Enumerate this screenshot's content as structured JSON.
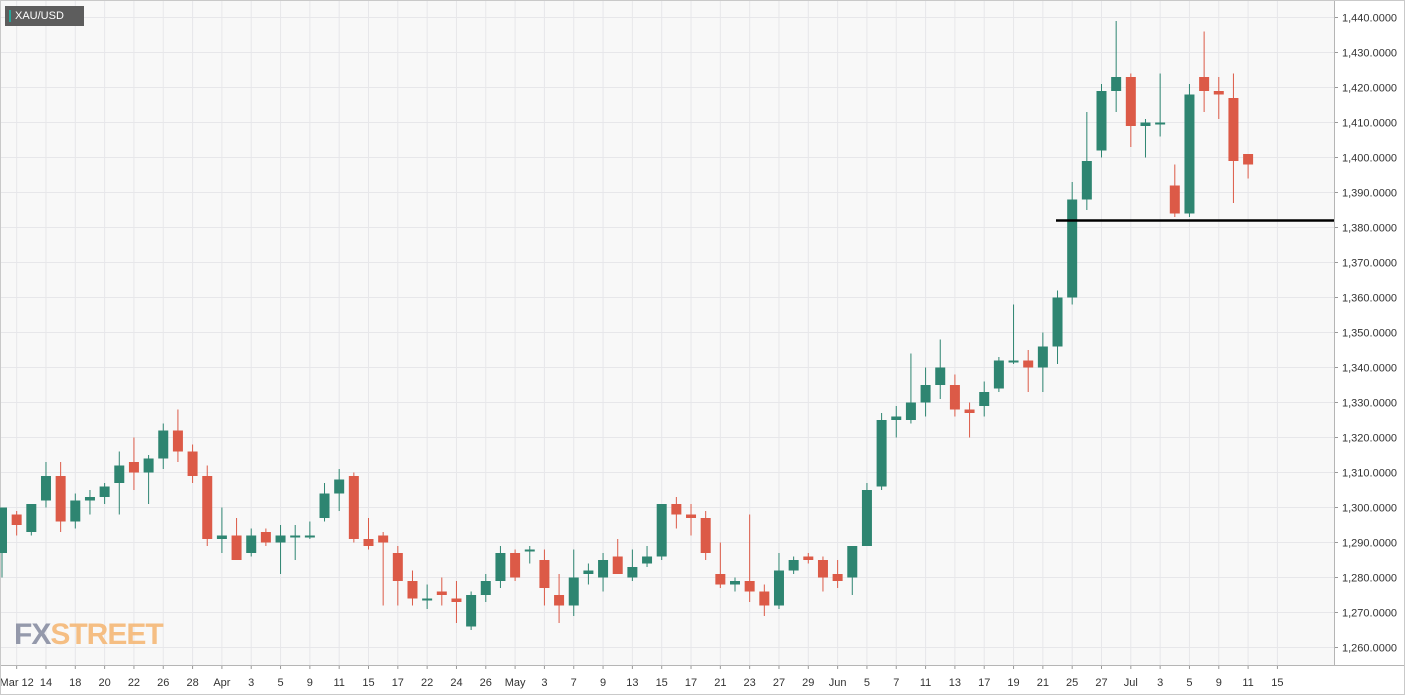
{
  "symbol": "XAU/USD",
  "logo": {
    "part1": "FX",
    "part2": "STREET"
  },
  "colors": {
    "up": "#2e8571",
    "down": "#dc5a47",
    "grid": "#e7e7ea",
    "support": "#000000",
    "plot_bg": "#f8f8f8"
  },
  "chart_data": {
    "type": "candlestick",
    "title": "",
    "xlabel": "",
    "ylabel": "",
    "ylim": [
      1255,
      1445
    ],
    "y_ticks": [
      1260,
      1270,
      1280,
      1290,
      1300,
      1310,
      1320,
      1330,
      1340,
      1350,
      1360,
      1370,
      1380,
      1390,
      1400,
      1410,
      1420,
      1430,
      1440
    ],
    "y_tick_labels": [
      "1,260.0000",
      "1,270.0000",
      "1,280.0000",
      "1,290.0000",
      "1,300.0000",
      "1,310.0000",
      "1,320.0000",
      "1,330.0000",
      "1,340.0000",
      "1,350.0000",
      "1,360.0000",
      "1,370.0000",
      "1,380.0000",
      "1,390.0000",
      "1,400.0000",
      "1,410.0000",
      "1,420.0000",
      "1,430.0000",
      "1,440.0000"
    ],
    "x_tick_labels": [
      "Mar 12",
      "14",
      "18",
      "20",
      "22",
      "26",
      "28",
      "Apr",
      "3",
      "5",
      "9",
      "11",
      "15",
      "17",
      "22",
      "24",
      "26",
      "May",
      "3",
      "7",
      "9",
      "13",
      "15",
      "17",
      "21",
      "23",
      "27",
      "29",
      "Jun",
      "5",
      "7",
      "11",
      "13",
      "17",
      "19",
      "21",
      "25",
      "27",
      "Jul",
      "3",
      "5",
      "9",
      "11",
      "15"
    ],
    "support_level": 1382,
    "candles": [
      {
        "o": 1287,
        "h": 1300,
        "l": 1280,
        "c": 1300
      },
      {
        "o": 1298,
        "h": 1299,
        "l": 1292,
        "c": 1295
      },
      {
        "o": 1293,
        "h": 1301,
        "l": 1292,
        "c": 1301
      },
      {
        "o": 1302,
        "h": 1313,
        "l": 1300,
        "c": 1309
      },
      {
        "o": 1309,
        "h": 1313,
        "l": 1293,
        "c": 1296
      },
      {
        "o": 1296,
        "h": 1304,
        "l": 1294,
        "c": 1302
      },
      {
        "o": 1302,
        "h": 1305,
        "l": 1298,
        "c": 1303
      },
      {
        "o": 1303,
        "h": 1307,
        "l": 1301,
        "c": 1306
      },
      {
        "o": 1307,
        "h": 1316,
        "l": 1298,
        "c": 1312
      },
      {
        "o": 1313,
        "h": 1320,
        "l": 1305,
        "c": 1310
      },
      {
        "o": 1310,
        "h": 1315,
        "l": 1301,
        "c": 1314
      },
      {
        "o": 1314,
        "h": 1324,
        "l": 1311,
        "c": 1322
      },
      {
        "o": 1322,
        "h": 1328,
        "l": 1313,
        "c": 1316
      },
      {
        "o": 1316,
        "h": 1318,
        "l": 1307,
        "c": 1309
      },
      {
        "o": 1309,
        "h": 1312,
        "l": 1289,
        "c": 1291
      },
      {
        "o": 1291,
        "h": 1300,
        "l": 1287,
        "c": 1292
      },
      {
        "o": 1292,
        "h": 1297,
        "l": 1285,
        "c": 1285
      },
      {
        "o": 1287,
        "h": 1294,
        "l": 1286,
        "c": 1292
      },
      {
        "o": 1293,
        "h": 1294,
        "l": 1289,
        "c": 1290
      },
      {
        "o": 1290,
        "h": 1295,
        "l": 1281,
        "c": 1292
      },
      {
        "o": 1292,
        "h": 1295,
        "l": 1285,
        "c": 1292
      },
      {
        "o": 1292,
        "h": 1296,
        "l": 1291,
        "c": 1292
      },
      {
        "o": 1297,
        "h": 1307,
        "l": 1296,
        "c": 1304
      },
      {
        "o": 1304,
        "h": 1311,
        "l": 1299,
        "c": 1308
      },
      {
        "o": 1309,
        "h": 1310,
        "l": 1290,
        "c": 1291
      },
      {
        "o": 1291,
        "h": 1297,
        "l": 1288,
        "c": 1289
      },
      {
        "o": 1292,
        "h": 1293,
        "l": 1272,
        "c": 1290
      },
      {
        "o": 1287,
        "h": 1289,
        "l": 1272,
        "c": 1279
      },
      {
        "o": 1279,
        "h": 1282,
        "l": 1272,
        "c": 1274
      },
      {
        "o": 1274,
        "h": 1278,
        "l": 1271,
        "c": 1274
      },
      {
        "o": 1276,
        "h": 1280,
        "l": 1272,
        "c": 1275
      },
      {
        "o": 1274,
        "h": 1279,
        "l": 1267,
        "c": 1273
      },
      {
        "o": 1266,
        "h": 1276,
        "l": 1265,
        "c": 1275
      },
      {
        "o": 1275,
        "h": 1281,
        "l": 1273,
        "c": 1279
      },
      {
        "o": 1279,
        "h": 1289,
        "l": 1277,
        "c": 1287
      },
      {
        "o": 1287,
        "h": 1288,
        "l": 1279,
        "c": 1280
      },
      {
        "o": 1288,
        "h": 1289,
        "l": 1284,
        "c": 1288
      },
      {
        "o": 1285,
        "h": 1288,
        "l": 1272,
        "c": 1277
      },
      {
        "o": 1275,
        "h": 1281,
        "l": 1267,
        "c": 1272
      },
      {
        "o": 1272,
        "h": 1288,
        "l": 1269,
        "c": 1280
      },
      {
        "o": 1281,
        "h": 1284,
        "l": 1278,
        "c": 1282
      },
      {
        "o": 1280,
        "h": 1287,
        "l": 1276,
        "c": 1285
      },
      {
        "o": 1286,
        "h": 1291,
        "l": 1281,
        "c": 1281
      },
      {
        "o": 1280,
        "h": 1288,
        "l": 1279,
        "c": 1283
      },
      {
        "o": 1284,
        "h": 1289,
        "l": 1283,
        "c": 1286
      },
      {
        "o": 1286,
        "h": 1301,
        "l": 1285,
        "c": 1301
      },
      {
        "o": 1301,
        "h": 1303,
        "l": 1294,
        "c": 1298
      },
      {
        "o": 1298,
        "h": 1301,
        "l": 1292,
        "c": 1297
      },
      {
        "o": 1297,
        "h": 1299,
        "l": 1285,
        "c": 1287
      },
      {
        "o": 1281,
        "h": 1290,
        "l": 1277,
        "c": 1278
      },
      {
        "o": 1278,
        "h": 1280,
        "l": 1276,
        "c": 1279
      },
      {
        "o": 1279,
        "h": 1298,
        "l": 1273,
        "c": 1276
      },
      {
        "o": 1276,
        "h": 1278,
        "l": 1269,
        "c": 1272
      },
      {
        "o": 1272,
        "h": 1287,
        "l": 1271,
        "c": 1282
      },
      {
        "o": 1282,
        "h": 1286,
        "l": 1281,
        "c": 1285
      },
      {
        "o": 1286,
        "h": 1287,
        "l": 1284,
        "c": 1285
      },
      {
        "o": 1285,
        "h": 1286,
        "l": 1276,
        "c": 1280
      },
      {
        "o": 1281,
        "h": 1285,
        "l": 1277,
        "c": 1279
      },
      {
        "o": 1280,
        "h": 1289,
        "l": 1275,
        "c": 1289
      },
      {
        "o": 1289,
        "h": 1307,
        "l": 1289,
        "c": 1305
      },
      {
        "o": 1306,
        "h": 1327,
        "l": 1305,
        "c": 1325
      },
      {
        "o": 1325,
        "h": 1329,
        "l": 1320,
        "c": 1326
      },
      {
        "o": 1325,
        "h": 1344,
        "l": 1324,
        "c": 1330
      },
      {
        "o": 1330,
        "h": 1340,
        "l": 1326,
        "c": 1335
      },
      {
        "o": 1335,
        "h": 1348,
        "l": 1331,
        "c": 1340
      },
      {
        "o": 1335,
        "h": 1338,
        "l": 1326,
        "c": 1328
      },
      {
        "o": 1328,
        "h": 1330,
        "l": 1320,
        "c": 1327
      },
      {
        "o": 1329,
        "h": 1336,
        "l": 1326,
        "c": 1333
      },
      {
        "o": 1334,
        "h": 1343,
        "l": 1333,
        "c": 1342
      },
      {
        "o": 1342,
        "h": 1358,
        "l": 1341,
        "c": 1342
      },
      {
        "o": 1342,
        "h": 1345,
        "l": 1333,
        "c": 1340
      },
      {
        "o": 1340,
        "h": 1350,
        "l": 1333,
        "c": 1346
      },
      {
        "o": 1346,
        "h": 1362,
        "l": 1341,
        "c": 1360
      },
      {
        "o": 1360,
        "h": 1393,
        "l": 1358,
        "c": 1388
      },
      {
        "o": 1388,
        "h": 1413,
        "l": 1385,
        "c": 1399
      },
      {
        "o": 1402,
        "h": 1421,
        "l": 1400,
        "c": 1419
      },
      {
        "o": 1419,
        "h": 1439,
        "l": 1413,
        "c": 1423
      },
      {
        "o": 1423,
        "h": 1424,
        "l": 1403,
        "c": 1409
      },
      {
        "o": 1409,
        "h": 1411,
        "l": 1400,
        "c": 1410
      },
      {
        "o": 1410,
        "h": 1424,
        "l": 1406,
        "c": 1410
      },
      {
        "o": 1392,
        "h": 1398,
        "l": 1383,
        "c": 1384
      },
      {
        "o": 1384,
        "h": 1421,
        "l": 1383,
        "c": 1418
      },
      {
        "o": 1423,
        "h": 1436,
        "l": 1413,
        "c": 1419
      },
      {
        "o": 1419,
        "h": 1423,
        "l": 1411,
        "c": 1418
      },
      {
        "o": 1417,
        "h": 1424,
        "l": 1387,
        "c": 1399
      },
      {
        "o": 1401,
        "h": 1401,
        "l": 1394,
        "c": 1398
      }
    ]
  }
}
